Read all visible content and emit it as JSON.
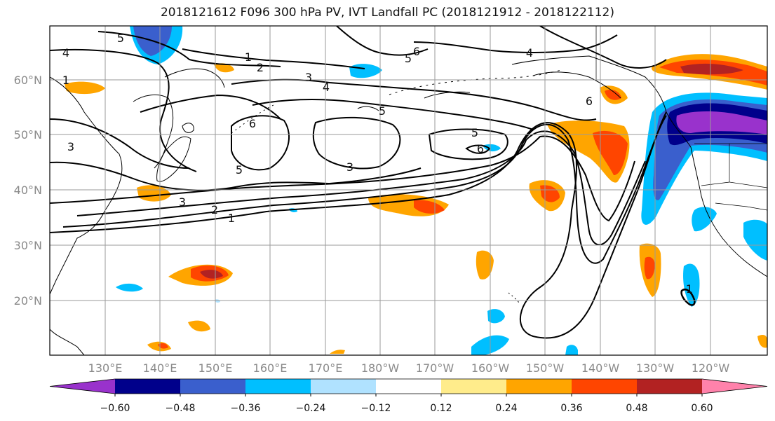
{
  "title": "2018121612 F096 300 hPa PV, IVT Landfall PC (2018121912 - 2018122112)",
  "lat_ticks": [
    "60°N",
    "50°N",
    "40°N",
    "30°N",
    "20°N"
  ],
  "lon_ticks": [
    "130°E",
    "140°E",
    "150°E",
    "160°E",
    "170°E",
    "180°W",
    "170°W",
    "160°W",
    "150°W",
    "140°W",
    "130°W",
    "120°W"
  ],
  "contour_labels": [
    "5",
    "4",
    "1",
    "1",
    "2",
    "3",
    "4",
    "5",
    "5",
    "6",
    "4",
    "6",
    "3",
    "6",
    "5",
    "3",
    "5",
    "6",
    "3",
    "2",
    "1",
    "1"
  ],
  "colorbar": {
    "ticks": [
      "−0.60",
      "−0.48",
      "−0.36",
      "−0.24",
      "−0.12",
      "0.12",
      "0.24",
      "0.36",
      "0.48",
      "0.60"
    ],
    "colors": [
      "#9932cc",
      "#00008b",
      "#3a5fcd",
      "#00bfff",
      "#b0e2ff",
      "#ffffff",
      "#ffec8b",
      "#ffa500",
      "#ff4500",
      "#b22222",
      "#ff82ab"
    ]
  }
}
